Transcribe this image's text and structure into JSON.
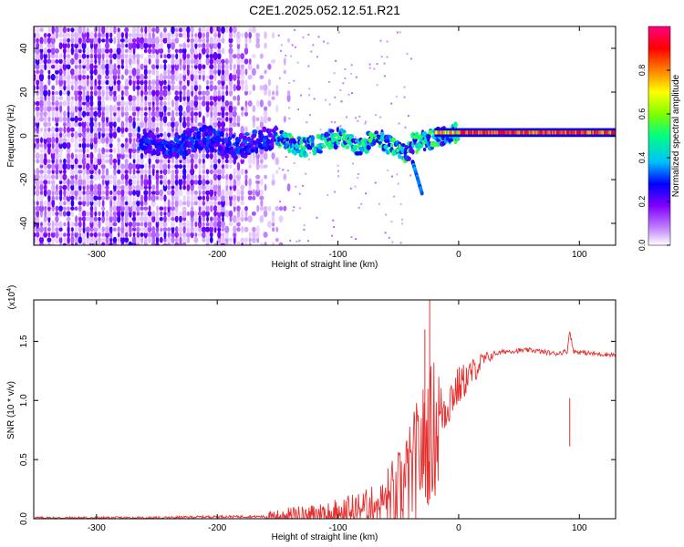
{
  "figure_title": "C2E1.2025.052.12.51.R21",
  "chart_data": [
    {
      "type": "heatmap",
      "title": "",
      "xlabel": "Height of straight line (km)",
      "ylabel": "Frequency (Hz)",
      "xlim": [
        -352,
        130
      ],
      "ylim": [
        -50,
        50
      ],
      "xticks": [
        -300,
        -200,
        -100,
        0,
        100
      ],
      "yticks": [
        -40,
        -20,
        0,
        20,
        40
      ],
      "grid": false,
      "colorbar": {
        "label": "Normalized spectral amplitude",
        "range": [
          0,
          1
        ],
        "ticks": [
          0.0,
          0.2,
          0.4,
          0.6,
          0.8
        ],
        "colors": [
          "#ffffff",
          "#c080ff",
          "#8000ff",
          "#0000ff",
          "#00c0ff",
          "#00ff80",
          "#80ff00",
          "#ffff00",
          "#ff8000",
          "#ff0000",
          "#ff0080"
        ]
      },
      "features": [
        {
          "name": "",
          "x_range": [
            -352,
            -150
          ],
          "y_range": [
            -50,
            50
          ],
          "amplitude": 0.2
        },
        {
          "name": "",
          "x_range": [
            -150,
            0
          ],
          "y_center": -1,
          "amplitude": 0.45
        },
        {
          "name": "",
          "x_range": [
            0,
            130
          ],
          "y_center": 1.5,
          "amplitude": 0.9
        },
        {
          "name": "",
          "x_range": [
            -38,
            -30
          ],
          "y_range": [
            -27,
            -12
          ],
          "amplitude": 0.4
        }
      ]
    },
    {
      "type": "line",
      "title": "",
      "xlabel": "Height of straight line (km)",
      "ylabel": "SNR (10 * v/v)",
      "y_multiplier": "(x10",
      "y_multiplier_exp": "4",
      "y_multiplier_close": ")",
      "xlim": [
        -352,
        130
      ],
      "ylim": [
        0,
        1.85
      ],
      "xticks": [
        -300,
        -200,
        -100,
        0,
        100
      ],
      "yticks": [
        0.0,
        0.5,
        1.0,
        1.5
      ],
      "ytick_labels": [
        "0.0",
        "0.5",
        "1.0",
        "1.5"
      ],
      "grid": false,
      "series": [
        {
          "name": "",
          "color": "#e83030",
          "x": [
            -352,
            -300,
            -250,
            -200,
            -160,
            -140,
            -120,
            -100,
            -80,
            -60,
            -50,
            -40,
            -35,
            -30,
            -25,
            -20,
            -15,
            -10,
            -5,
            0,
            10,
            20,
            30,
            40,
            60,
            80,
            90,
            92,
            95,
            110,
            130
          ],
          "y": [
            0.01,
            0.01,
            0.01,
            0.02,
            0.02,
            0.04,
            0.05,
            0.08,
            0.12,
            0.2,
            0.28,
            0.45,
            0.6,
            0.7,
            0.8,
            0.9,
            0.95,
            1.0,
            1.1,
            1.15,
            1.25,
            1.35,
            1.4,
            1.42,
            1.43,
            1.4,
            1.42,
            1.6,
            1.42,
            1.4,
            1.39
          ]
        }
      ],
      "spikes": [
        {
          "x": -24,
          "y": 1.85
        },
        {
          "x": -28,
          "y": 1.6
        },
        {
          "x": 92,
          "y": 1.02
        }
      ]
    }
  ]
}
